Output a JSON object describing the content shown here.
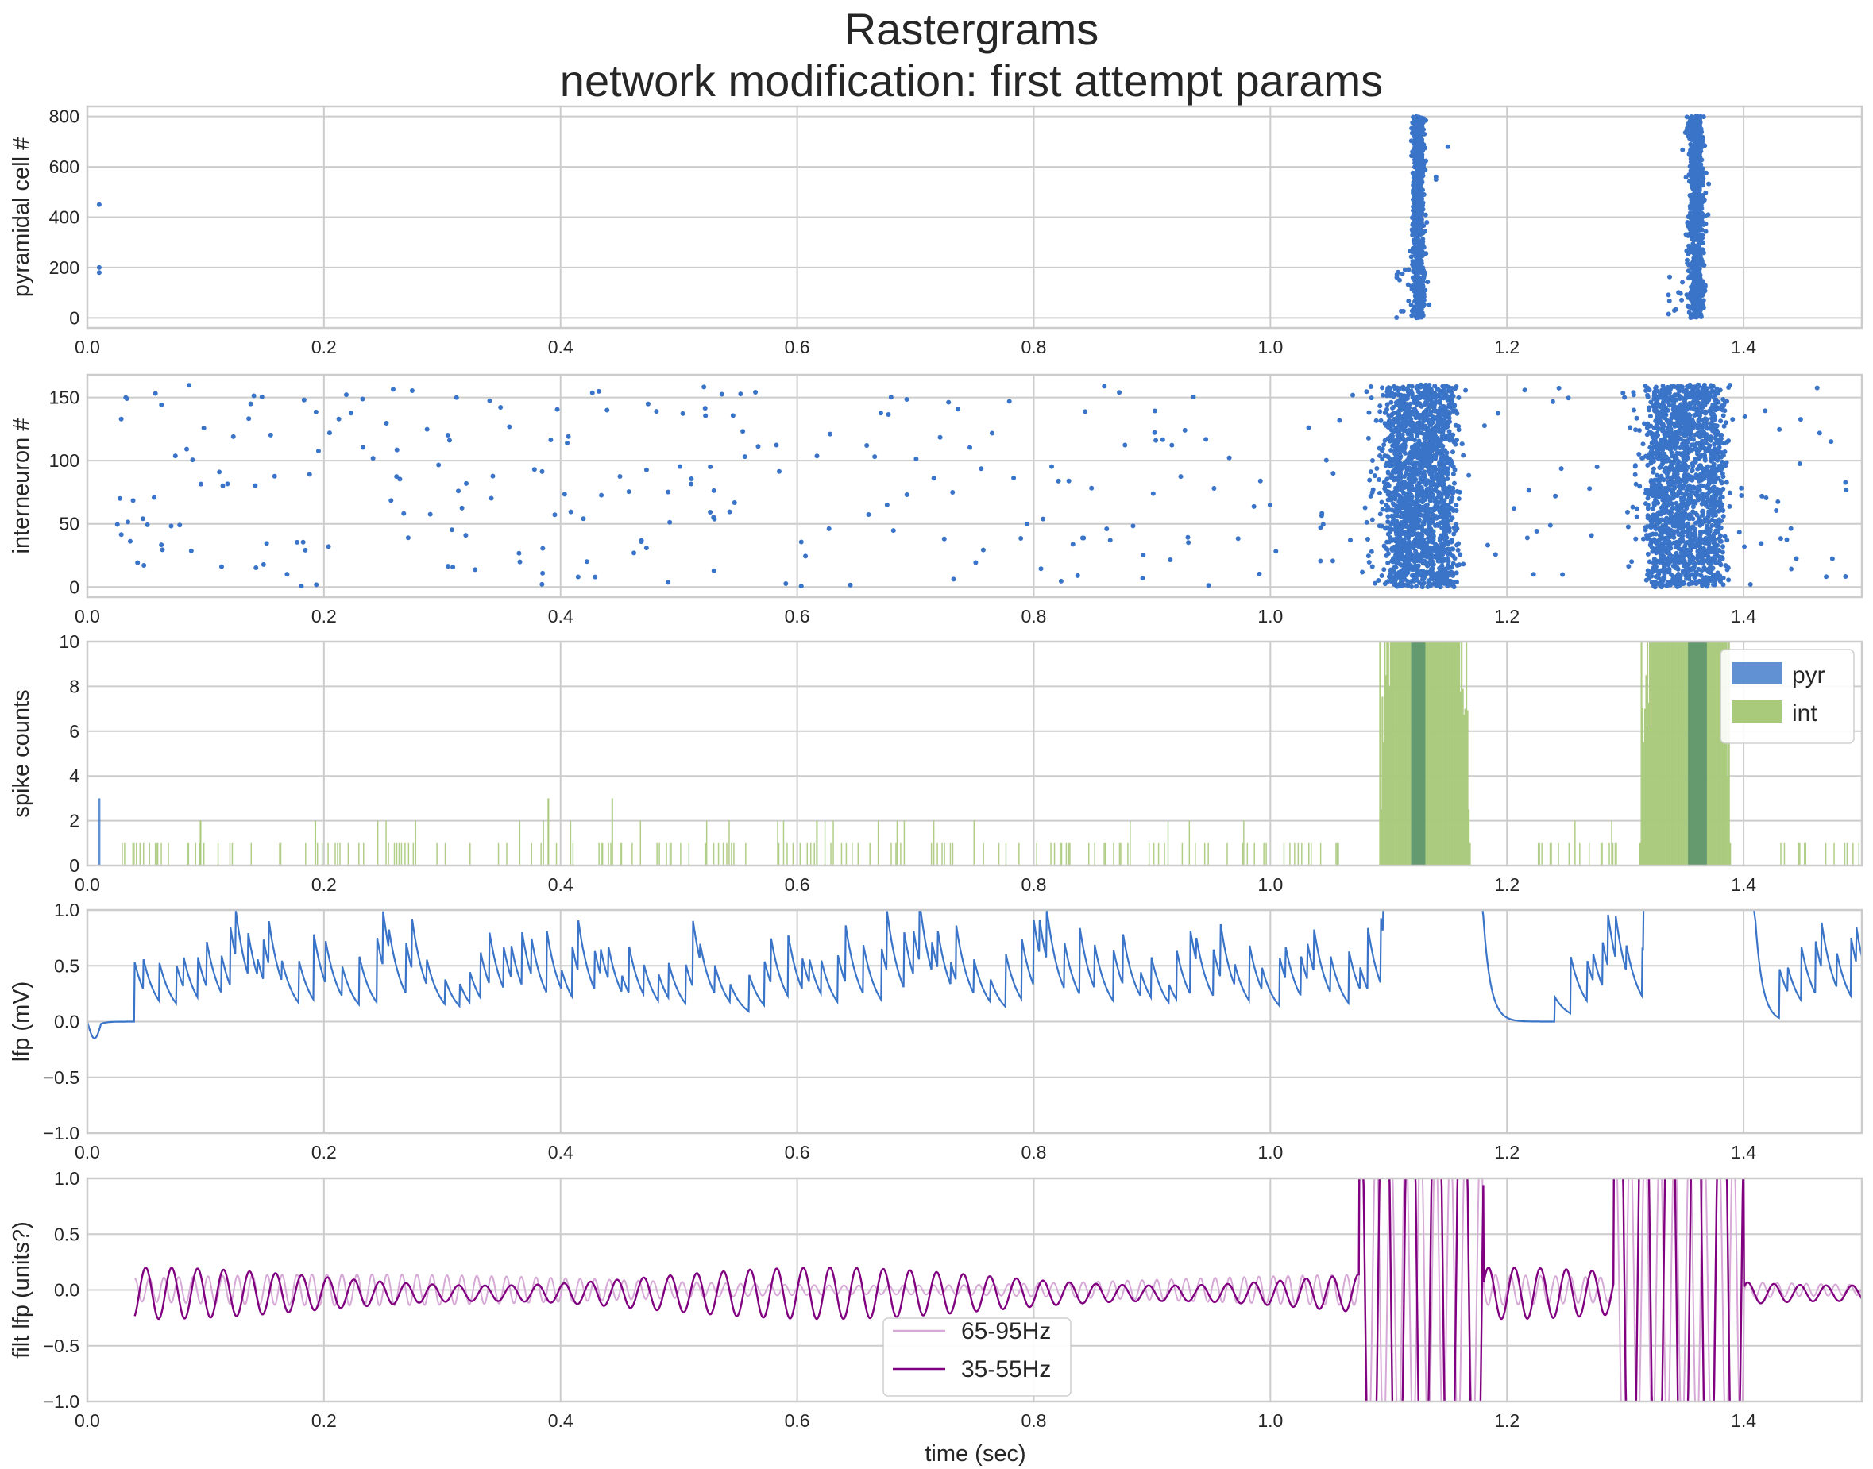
{
  "figure": {
    "title_line1": "Rastergrams",
    "title_line2": "network modification: first attempt params",
    "xlabel": "time (sec)"
  },
  "colors": {
    "pyr": "#3a74c8",
    "int": "#a9c97b",
    "lfp": "#3a74c8",
    "gamma_high": "#d6a9d6",
    "gamma_low": "#800080",
    "grid": "#cccccc"
  },
  "chart_data": [
    {
      "id": "pyr_raster",
      "type": "scatter",
      "title": "",
      "xlabel": "",
      "ylabel": "pyramidal cell #",
      "xlim": [
        0.0,
        1.5
      ],
      "ylim": [
        -40,
        840
      ],
      "xticks": [
        "0.0",
        "0.2",
        "0.4",
        "0.6",
        "0.8",
        "1.0",
        "1.2",
        "1.4"
      ],
      "yticks": [
        "0",
        "200",
        "400",
        "600",
        "800"
      ],
      "grid": true,
      "points": [
        [
          0.01,
          450
        ],
        [
          0.01,
          180
        ],
        [
          0.01,
          200
        ],
        [
          1.15,
          680
        ],
        [
          1.14,
          550
        ],
        [
          1.14,
          560
        ]
      ],
      "bursts": [
        {
          "center": 1.125,
          "width": 0.011,
          "n": 0,
          "ymin": 0,
          "ymax": 800
        },
        {
          "center": 1.36,
          "width": 0.014,
          "n": 0,
          "ymin": 0,
          "ymax": 800
        }
      ],
      "note_bursts": "dense synchronized firing near t=1.12 s and t=1.36 s across all cells (0-800)"
    },
    {
      "id": "int_raster",
      "type": "scatter",
      "ylabel": "interneuron #",
      "xlim": [
        0.0,
        1.5
      ],
      "ylim": [
        -8,
        168
      ],
      "xticks": [
        "0.0",
        "0.2",
        "0.4",
        "0.6",
        "0.8",
        "1.0",
        "1.2",
        "1.4"
      ],
      "yticks": [
        "0",
        "50",
        "100",
        "150"
      ],
      "grid": true,
      "background_rate": "sparse random spikes 0-160 throughout",
      "bursts": [
        {
          "start": 1.1,
          "end": 1.155,
          "ymin": 0,
          "ymax": 160
        },
        {
          "start": 1.322,
          "end": 1.38,
          "ymin": 0,
          "ymax": 160
        }
      ]
    },
    {
      "id": "spike_hist",
      "type": "bar",
      "ylabel": "spike counts",
      "xlim": [
        0.0,
        1.5
      ],
      "ylim": [
        0,
        10
      ],
      "xticks": [
        "0.0",
        "0.2",
        "0.4",
        "0.6",
        "0.8",
        "1.0",
        "1.2",
        "1.4"
      ],
      "yticks": [
        "0",
        "2",
        "4",
        "6",
        "8",
        "10"
      ],
      "grid": true,
      "legend": {
        "position": "upper right",
        "entries": [
          "pyr",
          "int"
        ]
      },
      "series": [
        {
          "name": "pyr",
          "description": "count 3 at 0.01 s; saturated (>10) at ~1.12-1.13 s and ~1.355-1.37 s"
        },
        {
          "name": "int",
          "description": "mostly 0-2 with occasional 3 (0.39, 0.44 s); saturated (>10) over 1.095-1.165 s and 1.315-1.385 s"
        }
      ],
      "bursts": [
        {
          "int_start": 1.092,
          "int_end": 1.168,
          "pyr_start": 1.119,
          "pyr_end": 1.131
        },
        {
          "int_start": 1.312,
          "int_end": 1.388,
          "pyr_start": 1.353,
          "pyr_end": 1.369
        }
      ]
    },
    {
      "id": "lfp",
      "type": "line",
      "ylabel": "lfp (mV)",
      "xlim": [
        0.0,
        1.5
      ],
      "ylim": [
        -1.0,
        1.0
      ],
      "xticks": [
        "0.0",
        "0.2",
        "0.4",
        "0.6",
        "0.8",
        "1.0",
        "1.2",
        "1.4"
      ],
      "yticks": [
        "−1.0",
        "−0.5",
        "0.0",
        "0.5",
        "1.0"
      ],
      "grid": true,
      "description": "starts at 0, dips to -0.15 near 0.01 s, then oscillates 0.0-1.0 mV; saturates during bursts near 1.1-1.17 s and 1.31-1.4 s; flat ~0 at 1.19-1.23 s"
    },
    {
      "id": "filt_lfp",
      "type": "line",
      "ylabel": "filt lfp (units?)",
      "xlabel": "time (sec)",
      "xlim": [
        0.0,
        1.5
      ],
      "ylim": [
        -1.0,
        1.0
      ],
      "xticks": [
        "0.0",
        "0.2",
        "0.4",
        "0.6",
        "0.8",
        "1.0",
        "1.2",
        "1.4"
      ],
      "yticks": [
        "−1.0",
        "−0.5",
        "0.0",
        "0.5",
        "1.0"
      ],
      "grid": true,
      "legend": {
        "position": "lower center",
        "entries": [
          "65-95Hz",
          "35-55Hz"
        ]
      },
      "series": [
        {
          "name": "65-95Hz",
          "amplitude": "about ±0.15 baseline, ±1 during bursts"
        },
        {
          "name": "35-55Hz",
          "amplitude": "about ±0.25 baseline, saturated ±1 during bursts near 1.08-1.18 s and 1.29-1.40 s"
        }
      ]
    }
  ]
}
